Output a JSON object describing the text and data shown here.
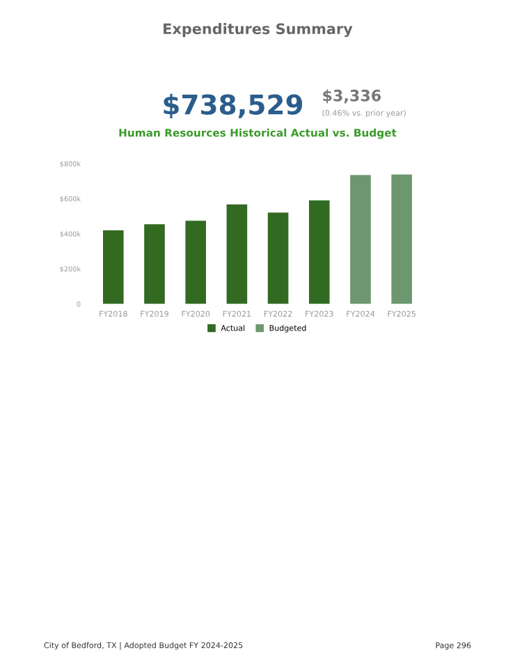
{
  "chart_data": {
    "type": "bar",
    "title": "Human Resources Historical Actual vs. Budget",
    "categories": [
      "FY2018",
      "FY2019",
      "FY2020",
      "FY2021",
      "FY2022",
      "FY2023",
      "FY2024",
      "FY2025"
    ],
    "series": [
      {
        "name": "Actual",
        "color": "#336a22",
        "values": [
          420000,
          455000,
          474000,
          568000,
          521000,
          590000,
          null,
          null
        ]
      },
      {
        "name": "Budgeted",
        "color": "#6d976f",
        "values": [
          null,
          null,
          null,
          null,
          null,
          null,
          735193,
          738529
        ]
      }
    ],
    "ylim": [
      0,
      800000
    ],
    "yticks": [
      {
        "value": 0,
        "label": "0"
      },
      {
        "value": 200000,
        "label": "$200k"
      },
      {
        "value": 400000,
        "label": "$400k"
      },
      {
        "value": 600000,
        "label": "$600k"
      },
      {
        "value": 800000,
        "label": "$800k"
      }
    ],
    "grid": false,
    "legend": "bottom",
    "annotations": [
      "Expenditures Summary",
      "$738,529",
      "$3,336",
      "(0.46% vs. prior year)",
      "City of Bedford, TX | Adopted Budget FY 2024-2025",
      "Page 296"
    ]
  }
}
